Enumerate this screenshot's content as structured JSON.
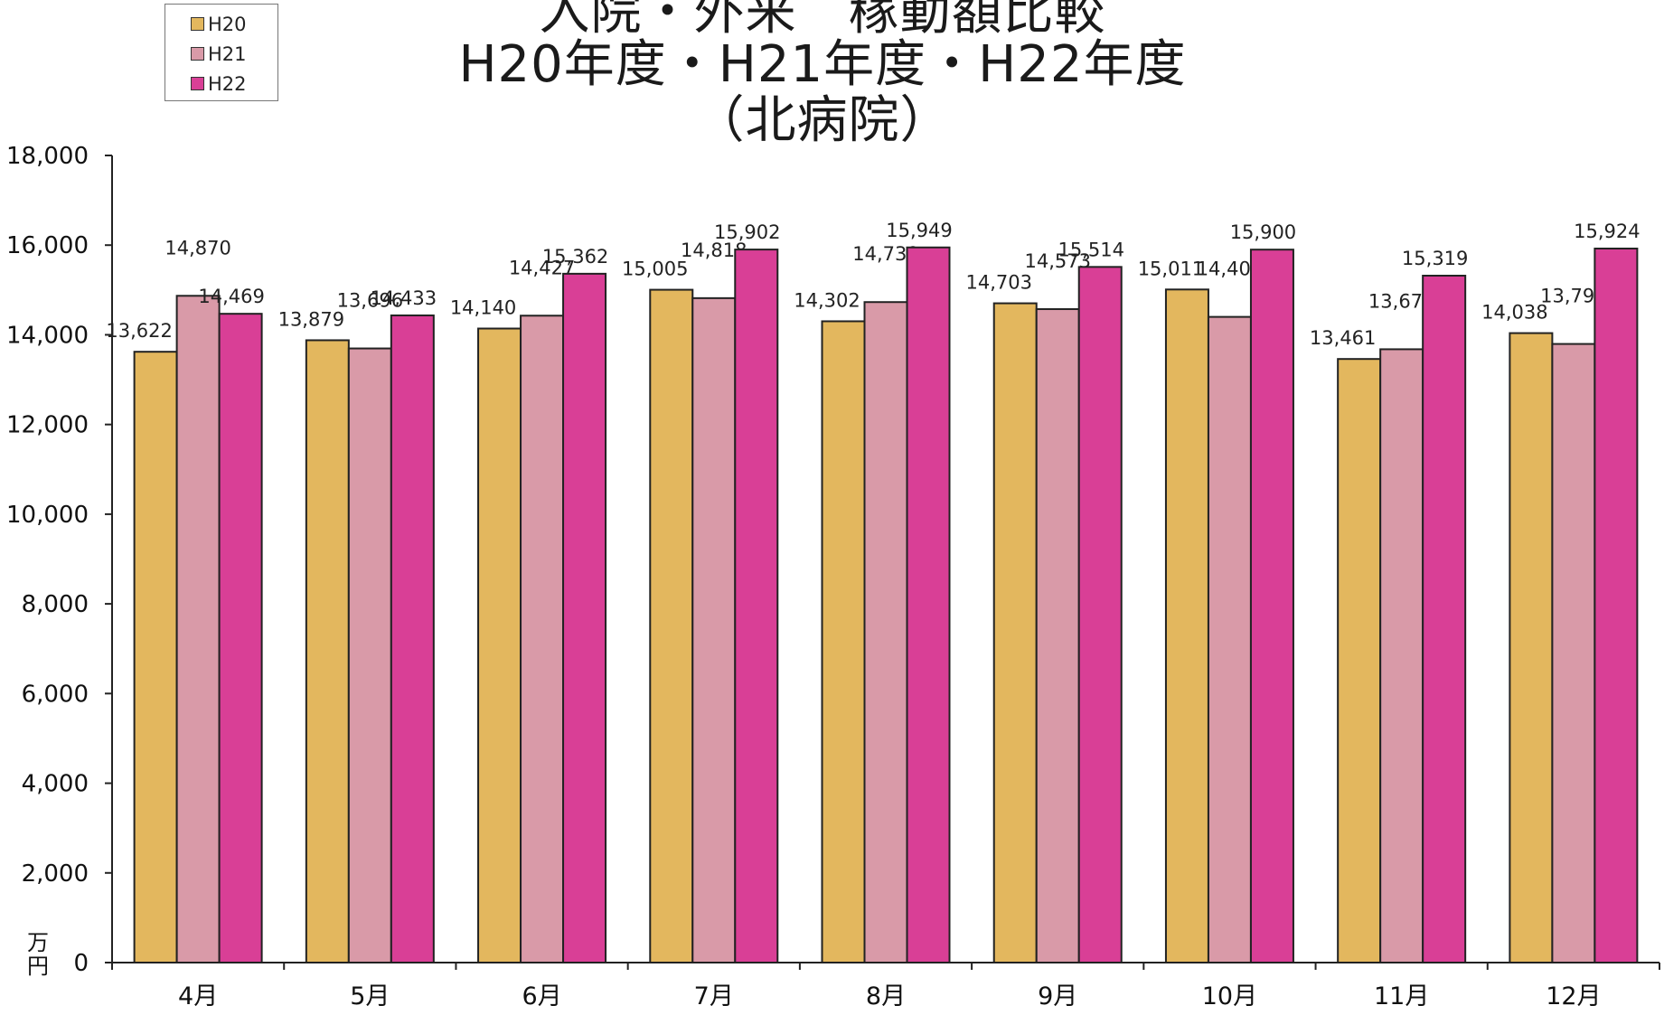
{
  "chart_data": {
    "type": "bar",
    "title": [
      "入院・外来　稼動額比較",
      "H20年度・H21年度・H22年度",
      "（北病院）"
    ],
    "unit_label": "万円",
    "categories": [
      "4月",
      "5月",
      "6月",
      "7月",
      "8月",
      "9月",
      "10月",
      "11月",
      "12月"
    ],
    "series": [
      {
        "name": "H20",
        "color": "#e3b75e",
        "values": [
          13622,
          13879,
          14140,
          15005,
          14302,
          14703,
          15011,
          13461,
          14038
        ],
        "labels": [
          "13,622",
          "13,879",
          "14,140",
          "15,005",
          "14,302",
          "14,703",
          "15,011",
          "13,461",
          "14,038"
        ]
      },
      {
        "name": "H21",
        "color": "#d99aa8",
        "values": [
          14870,
          13696,
          14427,
          14818,
          14730,
          14573,
          14400,
          13678,
          13796
        ],
        "labels": [
          "14,870",
          "13,696",
          "14,427",
          "14,818",
          "14,730",
          "14,573",
          "14,400",
          "13,678",
          "13,796"
        ]
      },
      {
        "name": "H22",
        "color": "#d93f96",
        "values": [
          14469,
          14433,
          15362,
          15902,
          15949,
          15514,
          15900,
          15319,
          15924
        ],
        "labels": [
          "14,469",
          "14,433",
          "15,362",
          "15,902",
          "15,949",
          "15,514",
          "15,900",
          "15,319",
          "15,924"
        ]
      }
    ],
    "ylim": [
      0,
      18000
    ],
    "yticks": [
      "0",
      "2,000",
      "4,000",
      "6,000",
      "8,000",
      "10,000",
      "12,000",
      "14,000",
      "16,000",
      "18,000"
    ],
    "grid": false,
    "legend": "top-left"
  }
}
